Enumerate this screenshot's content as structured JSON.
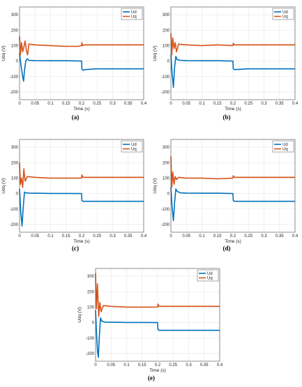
{
  "chart_data": [
    {
      "type": "line",
      "panel_label": "(a)",
      "xlabel": "Time (s)",
      "ylabel": "Udq (V)",
      "xlim": [
        0,
        0.4
      ],
      "ylim": [
        -250,
        350
      ],
      "xticks": [
        "0",
        "0.05",
        "0.1",
        "0.15",
        "0.2",
        "0.25",
        "0.3",
        "0.35",
        "0.4"
      ],
      "yticks": [
        "-200",
        "-100",
        "0",
        "100",
        "200",
        "300"
      ],
      "grid": true,
      "legend_position": "top-right",
      "series": [
        {
          "name": "Ud",
          "color": "#0072BD",
          "x": [
            0,
            0.005,
            0.01,
            0.013,
            0.016,
            0.02,
            0.025,
            0.03,
            0.05,
            0.1,
            0.15,
            0.2,
            0.201,
            0.205,
            0.21,
            0.25,
            0.3,
            0.35,
            0.4
          ],
          "y": [
            50,
            -30,
            -100,
            -130,
            -60,
            0,
            15,
            5,
            3,
            2,
            2,
            0,
            -50,
            -60,
            -55,
            -50,
            -50,
            -50,
            -50
          ]
        },
        {
          "name": "Uq",
          "color": "#D95319",
          "x": [
            0,
            0.003,
            0.006,
            0.01,
            0.014,
            0.018,
            0.022,
            0.026,
            0.03,
            0.05,
            0.1,
            0.15,
            0.19,
            0.2,
            0.201,
            0.203,
            0.21,
            0.25,
            0.3,
            0.35,
            0.4
          ],
          "y": [
            160,
            40,
            120,
            60,
            90,
            130,
            70,
            40,
            110,
            105,
            100,
            95,
            95,
            100,
            120,
            100,
            105,
            105,
            105,
            105,
            105
          ]
        }
      ]
    },
    {
      "type": "line",
      "panel_label": "(b)",
      "xlabel": "Time (s)",
      "ylabel": "Udq (V)",
      "xlim": [
        0,
        0.4
      ],
      "ylim": [
        -250,
        350
      ],
      "xticks": [
        "0",
        "0.05",
        "0.1",
        "0.15",
        "0.2",
        "0.25",
        "0.3",
        "0.35",
        "0.4"
      ],
      "yticks": [
        "-200",
        "-100",
        "0",
        "100",
        "200",
        "300"
      ],
      "grid": true,
      "legend_position": "top-right",
      "series": [
        {
          "name": "Ud",
          "color": "#0072BD",
          "x": [
            0,
            0.004,
            0.008,
            0.012,
            0.016,
            0.02,
            0.03,
            0.05,
            0.1,
            0.15,
            0.2,
            0.201,
            0.205,
            0.25,
            0.3,
            0.35,
            0.4
          ],
          "y": [
            40,
            -80,
            -170,
            -40,
            30,
            10,
            5,
            3,
            2,
            2,
            0,
            -50,
            -55,
            -50,
            -50,
            -50,
            -50
          ]
        },
        {
          "name": "Uq",
          "color": "#D95319",
          "x": [
            0,
            0.003,
            0.006,
            0.01,
            0.014,
            0.018,
            0.025,
            0.05,
            0.1,
            0.15,
            0.2,
            0.201,
            0.205,
            0.25,
            0.3,
            0.35,
            0.4
          ],
          "y": [
            180,
            40,
            150,
            80,
            120,
            60,
            110,
            105,
            100,
            105,
            100,
            115,
            105,
            105,
            105,
            105,
            105
          ]
        }
      ]
    },
    {
      "type": "line",
      "panel_label": "(c)",
      "xlabel": "Time (s)",
      "ylabel": "Udq (V)",
      "xlim": [
        0,
        0.4
      ],
      "ylim": [
        -250,
        350
      ],
      "xticks": [
        "0",
        "0.05",
        "0.1",
        "0.15",
        "0.2",
        "0.25",
        "0.3",
        "0.35",
        "0.4"
      ],
      "yticks": [
        "-200",
        "-100",
        "0",
        "100",
        "200",
        "300"
      ],
      "grid": true,
      "legend_position": "top-right",
      "series": [
        {
          "name": "Ud",
          "color": "#0072BD",
          "x": [
            0,
            0.004,
            0.008,
            0.012,
            0.016,
            0.02,
            0.03,
            0.05,
            0.1,
            0.15,
            0.2,
            0.201,
            0.205,
            0.25,
            0.3,
            0.35,
            0.4
          ],
          "y": [
            30,
            -120,
            -210,
            -90,
            10,
            5,
            3,
            2,
            1,
            1,
            0,
            -45,
            -50,
            -50,
            -50,
            -50,
            -50
          ]
        },
        {
          "name": "Uq",
          "color": "#D95319",
          "x": [
            0,
            0.003,
            0.006,
            0.01,
            0.014,
            0.018,
            0.025,
            0.05,
            0.1,
            0.15,
            0.2,
            0.201,
            0.205,
            0.25,
            0.3,
            0.35,
            0.4
          ],
          "y": [
            200,
            60,
            100,
            40,
            160,
            80,
            110,
            105,
            100,
            100,
            100,
            120,
            105,
            105,
            105,
            105,
            105
          ]
        }
      ]
    },
    {
      "type": "line",
      "panel_label": "(d)",
      "xlabel": "Time (s)",
      "ylabel": "Udq (V)",
      "xlim": [
        0,
        0.4
      ],
      "ylim": [
        -250,
        350
      ],
      "xticks": [
        "0",
        "0.05",
        "0.1",
        "0.15",
        "0.2",
        "0.25",
        "0.3",
        "0.35",
        "0.4"
      ],
      "yticks": [
        "-200",
        "-100",
        "0",
        "100",
        "200",
        "300"
      ],
      "grid": true,
      "legend_position": "top-right",
      "series": [
        {
          "name": "Ud",
          "color": "#0072BD",
          "x": [
            0,
            0.004,
            0.008,
            0.012,
            0.016,
            0.02,
            0.03,
            0.05,
            0.1,
            0.15,
            0.2,
            0.201,
            0.205,
            0.25,
            0.3,
            0.35,
            0.4
          ],
          "y": [
            40,
            -90,
            -175,
            -60,
            30,
            15,
            5,
            3,
            2,
            2,
            0,
            -45,
            -50,
            -50,
            -50,
            -50,
            -50
          ]
        },
        {
          "name": "Uq",
          "color": "#D95319",
          "x": [
            0,
            0.003,
            0.006,
            0.01,
            0.014,
            0.018,
            0.025,
            0.05,
            0.1,
            0.15,
            0.2,
            0.201,
            0.205,
            0.25,
            0.3,
            0.35,
            0.4
          ],
          "y": [
            240,
            40,
            140,
            60,
            110,
            90,
            105,
            100,
            100,
            95,
            100,
            115,
            105,
            105,
            105,
            105,
            105
          ]
        }
      ]
    },
    {
      "type": "line",
      "panel_label": "(e)",
      "xlabel": "Time (s)",
      "ylabel": "Udq (V)",
      "xlim": [
        0,
        0.4
      ],
      "ylim": [
        -250,
        350
      ],
      "xticks": [
        "0",
        "0.05",
        "0.1",
        "0.15",
        "0.2",
        "0.25",
        "0.3",
        "0.35",
        "0.4"
      ],
      "yticks": [
        "-200",
        "-100",
        "0",
        "100",
        "200",
        "300"
      ],
      "grid": true,
      "legend_position": "top-right",
      "series": [
        {
          "name": "Ud",
          "color": "#0072BD",
          "x": [
            0,
            0.003,
            0.006,
            0.009,
            0.012,
            0.016,
            0.02,
            0.03,
            0.05,
            0.1,
            0.15,
            0.2,
            0.201,
            0.205,
            0.25,
            0.3,
            0.35,
            0.4
          ],
          "y": [
            80,
            -60,
            -180,
            -225,
            -100,
            30,
            10,
            3,
            2,
            1,
            1,
            0,
            -45,
            -50,
            -50,
            -50,
            -50,
            -50
          ]
        },
        {
          "name": "Uq",
          "color": "#D95319",
          "x": [
            0,
            0.003,
            0.006,
            0.01,
            0.014,
            0.018,
            0.025,
            0.05,
            0.1,
            0.15,
            0.2,
            0.201,
            0.205,
            0.25,
            0.3,
            0.35,
            0.4
          ],
          "y": [
            320,
            90,
            250,
            40,
            130,
            70,
            110,
            105,
            100,
            100,
            100,
            120,
            105,
            105,
            105,
            105,
            105
          ]
        }
      ]
    }
  ]
}
